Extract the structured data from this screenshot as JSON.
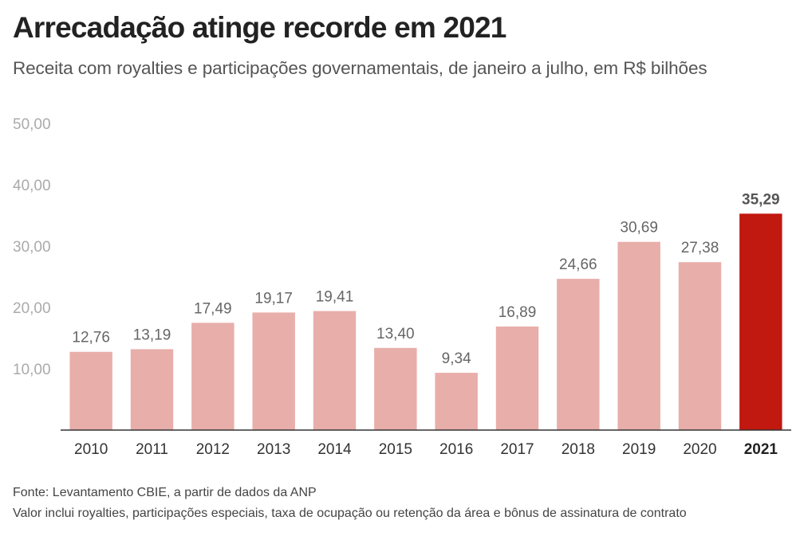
{
  "title": "Arrecadação atinge recorde em 2021",
  "subtitle": "Receita com royalties e participações governamentais, de janeiro a julho, em R$ bilhões",
  "footnotes": [
    "Fonte: Levantamento CBIE, a partir de dados da ANP",
    "Valor inclui royalties, participações especiais, taxa de ocupação ou retenção da área e bônus de assinatura de contrato"
  ],
  "colors": {
    "bar": "#e8aeaa",
    "highlight": "#c1180f",
    "axis": "#333333"
  },
  "chart_data": {
    "type": "bar",
    "title": "Arrecadação atinge recorde em 2021",
    "subtitle": "Receita com royalties e participações governamentais, de janeiro a julho, em R$ bilhões",
    "xlabel": "",
    "ylabel": "",
    "categories": [
      "2010",
      "2011",
      "2012",
      "2013",
      "2014",
      "2015",
      "2016",
      "2017",
      "2018",
      "2019",
      "2020",
      "2021"
    ],
    "values": [
      12.76,
      13.19,
      17.49,
      19.17,
      19.41,
      13.4,
      9.34,
      16.89,
      24.66,
      30.69,
      27.38,
      35.29
    ],
    "value_labels": [
      "12,76",
      "13,19",
      "17,49",
      "19,17",
      "19,41",
      "13,40",
      "9,34",
      "16,89",
      "24,66",
      "30,69",
      "27,38",
      "35,29"
    ],
    "highlight_category": "2021",
    "ylim": [
      0,
      50
    ],
    "yticks": [
      10,
      20,
      30,
      40,
      50
    ],
    "ytick_labels": [
      "10,00",
      "20,00",
      "30,00",
      "40,00",
      "50,00"
    ],
    "grid": false,
    "legend": "none"
  }
}
